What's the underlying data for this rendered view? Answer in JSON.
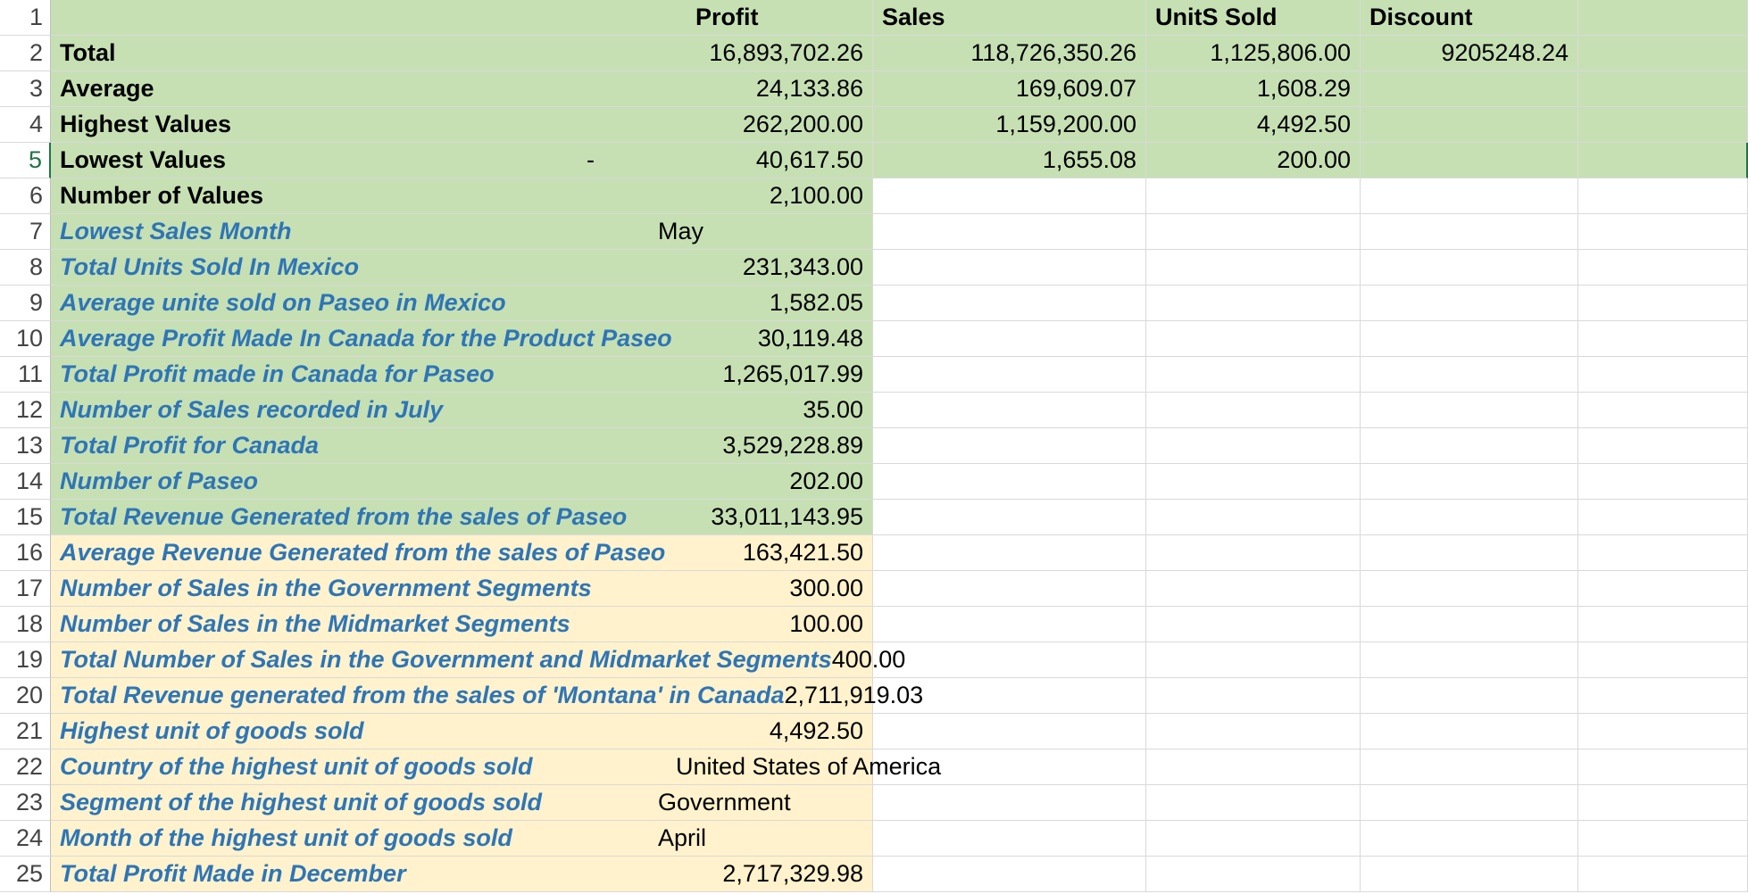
{
  "headers": {
    "b1": "Profit",
    "c1": "Sales",
    "d1": "UnitS Sold",
    "e1": "Discount"
  },
  "rows": [
    {
      "n": "1",
      "label": "",
      "b_text": "",
      "b_val": "",
      "c": "",
      "d": "",
      "e": ""
    },
    {
      "n": "2",
      "label": "Total",
      "b_val": "16,893,702.26",
      "c": "118,726,350.26",
      "d": "1,125,806.00",
      "e": "9205248.24"
    },
    {
      "n": "3",
      "label": "Average",
      "b_val": "24,133.86",
      "c": "169,609.07",
      "d": "1,608.29",
      "e": ""
    },
    {
      "n": "4",
      "label": "Highest Values",
      "b_val": "262,200.00",
      "c": "1,159,200.00",
      "d": "4,492.50",
      "e": ""
    },
    {
      "n": "5",
      "label": "Lowest Values",
      "b_prefix": "-",
      "b_val": "40,617.50",
      "c": "1,655.08",
      "d": "200.00",
      "e": ""
    },
    {
      "n": "6",
      "label": "Number of Values",
      "b_val": "2,100.00"
    },
    {
      "n": "7",
      "label": "Lowest Sales Month",
      "b_text": "May"
    },
    {
      "n": "8",
      "label": "Total Units Sold In Mexico",
      "b_val": "231,343.00"
    },
    {
      "n": "9",
      "label": "Average unite sold on Paseo in Mexico",
      "b_val": "1,582.05"
    },
    {
      "n": "10",
      "label": "Average Profit Made In Canada for the Product Paseo",
      "b_val": "30,119.48"
    },
    {
      "n": "11",
      "label": "Total Profit made in Canada for Paseo",
      "b_val": "1,265,017.99"
    },
    {
      "n": "12",
      "label": "Number of Sales recorded in July",
      "b_val": "35.00"
    },
    {
      "n": "13",
      "label": "Total Profit for Canada",
      "b_val": "3,529,228.89"
    },
    {
      "n": "14",
      "label": "Number of Paseo",
      "b_val": "202.00"
    },
    {
      "n": "15",
      "label": "Total Revenue Generated from the sales of Paseo",
      "b_val": "33,011,143.95"
    },
    {
      "n": "16",
      "label": "Average Revenue Generated from the sales of Paseo",
      "b_val": "163,421.50"
    },
    {
      "n": "17",
      "label": "Number of Sales in the Government Segments",
      "b_val": "300.00"
    },
    {
      "n": "18",
      "label": "Number of Sales in the Midmarket Segments",
      "b_val": "100.00"
    },
    {
      "n": "19",
      "label": "Total Number of Sales in the Government and Midmarket Segments",
      "b_val": "400.00"
    },
    {
      "n": "20",
      "label": "Total Revenue generated from the sales of 'Montana' in Canada",
      "b_val": "2,711,919.03"
    },
    {
      "n": "21",
      "label": "Highest unit of goods sold",
      "b_val": "4,492.50"
    },
    {
      "n": "22",
      "label": "Country of the highest unit of goods sold",
      "b_text": "United States of America"
    },
    {
      "n": "23",
      "label": "Segment of the highest unit of goods sold",
      "b_text": "Government"
    },
    {
      "n": "24",
      "label": "Month of the highest unit of goods sold",
      "b_text": "April"
    },
    {
      "n": "25",
      "label": "Total Profit Made in December",
      "b_val": "2,717,329.98"
    }
  ],
  "colors": {
    "green_fill": "#c6e0b4",
    "yellow_fill": "#fff2cc",
    "label_blue": "#2e75b6",
    "active_row": "#217346"
  }
}
